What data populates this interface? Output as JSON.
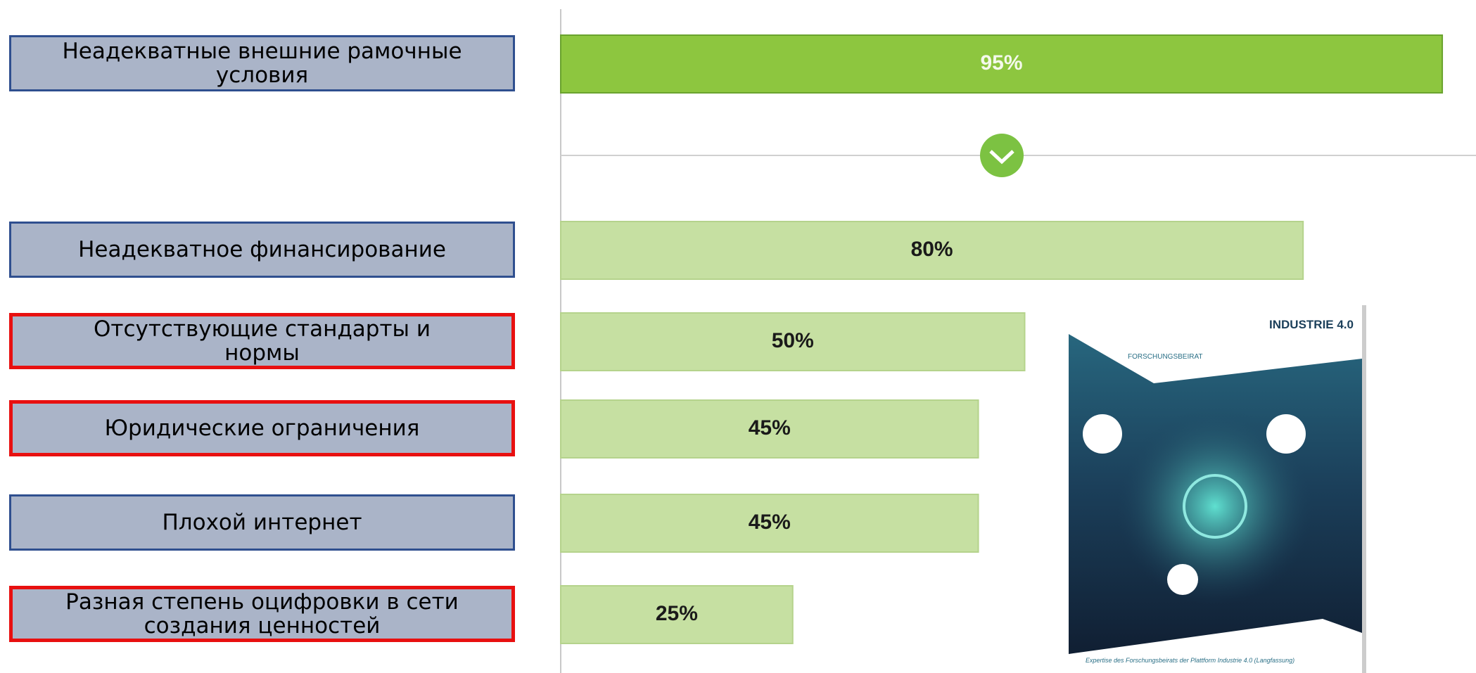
{
  "chart_data": {
    "type": "bar",
    "orientation": "horizontal",
    "categories": [
      "Неадекватные внешние рамочные условия",
      "Неадекватное финансирование",
      "Отсутствующие стандарты и нормы",
      "Юридические ограничения",
      "Плохой интернет",
      "Разная степень оцифровки в сети создания ценностей"
    ],
    "values": [
      95,
      80,
      50,
      45,
      45,
      25
    ],
    "value_labels": [
      "95%",
      "80%",
      "50%",
      "45%",
      "45%",
      "25%"
    ],
    "colors": [
      "#8dc63f",
      "#c6e0a2",
      "#c6e0a2",
      "#c6e0a2",
      "#c6e0a2",
      "#c6e0a2"
    ],
    "highlighted": [
      false,
      false,
      true,
      true,
      false,
      true
    ],
    "xlim": [
      0,
      100
    ]
  },
  "cover": {
    "brand": "INDUSTRIE 4.0",
    "section": "FORSCHUNGSBEIRAT",
    "caption": "Expertise des Forschungsbeirats der Plattform Industrie 4.0 (Langfassung)"
  }
}
